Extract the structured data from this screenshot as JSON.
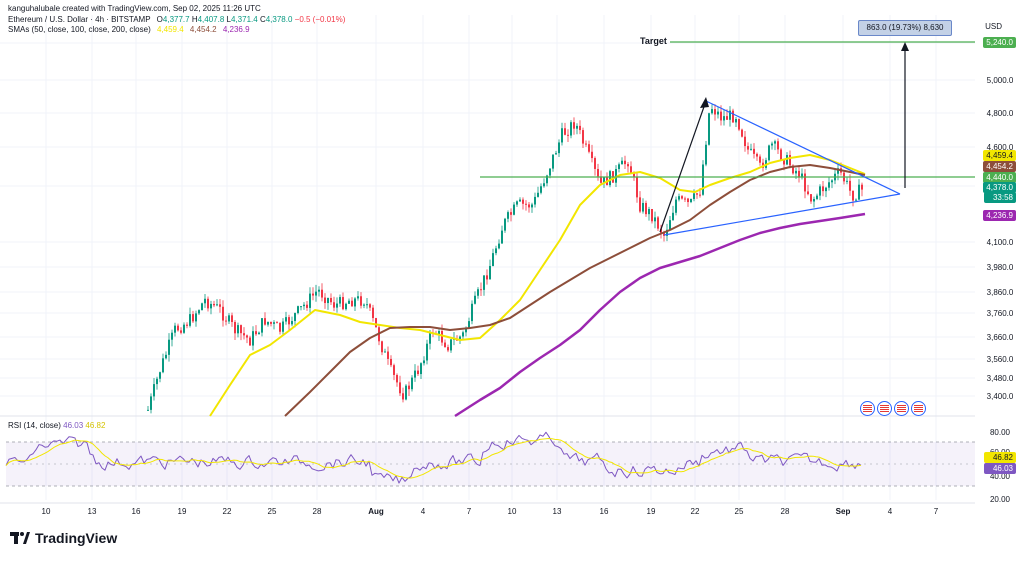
{
  "header": {
    "author": "kanguhalubale created with TradingView.com, Sep 02, 2025 11:26 UTC",
    "symbol": "Ethereum / U.S. Dollar · 4h · BITSTAMP",
    "o_label": "O",
    "o_val": "4,377.7",
    "h_label": "H",
    "h_val": "4,407.8",
    "l_label": "L",
    "l_val": "4,371.4",
    "c_label": "C",
    "c_val": "4,378.0",
    "change": "−0.5 (−0.01%)",
    "sma_label": "SMAs (50, close, 100, close, 200, close)",
    "sma50_val": "4,459.4",
    "sma100_val": "4,454.2",
    "sma200_val": "4,236.9"
  },
  "currency": "USD",
  "measure_text": "863.0 (19.73%) 8,630",
  "target_label": "Target",
  "rsi": {
    "label": "RSI (14, close)",
    "v1": "46.03",
    "v2": "46.82"
  },
  "price_axis": [
    "5,200.0",
    "5,000.0",
    "4,800.0",
    "4,600.0",
    "4,300.0",
    "4,100.0",
    "3,980.0",
    "3,860.0",
    "3,760.0",
    "3,660.0",
    "3,560.0",
    "3,480.0",
    "3,400.0"
  ],
  "rsi_axis": [
    "80.00",
    "60.00",
    "40.00",
    "20.00"
  ],
  "price_tags": [
    {
      "text": "5,240.0",
      "color": "#4caf50"
    },
    {
      "text": "4,459.4",
      "color": "#f2e600",
      "dark": true
    },
    {
      "text": "4,454.2",
      "color": "#8d4e3a"
    },
    {
      "text": "4,440.0",
      "color": "#4caf50"
    },
    {
      "text": "4,378.0",
      "color": "#089981"
    },
    {
      "text": "33:58",
      "color": "#089981"
    },
    {
      "text": "4,236.9",
      "color": "#9c27b0"
    }
  ],
  "rsi_tags": [
    {
      "text": "46.82",
      "color": "#f2e600",
      "dark": true
    },
    {
      "text": "46.03",
      "color": "#7e57c2"
    }
  ],
  "time_axis": [
    "10",
    "13",
    "16",
    "19",
    "22",
    "25",
    "28",
    "Aug",
    "4",
    "7",
    "10",
    "13",
    "16",
    "19",
    "22",
    "25",
    "28",
    "Sep",
    "4",
    "7"
  ],
  "brand": "TradingView",
  "colors": {
    "up": "#089981",
    "down": "#f23645",
    "sma50": "#f2e600",
    "sma100": "#8d4e3a",
    "sma200": "#9c27b0",
    "triangle": "#2962ff",
    "level": "#4caf50",
    "rsi": "#7e57c2"
  }
}
